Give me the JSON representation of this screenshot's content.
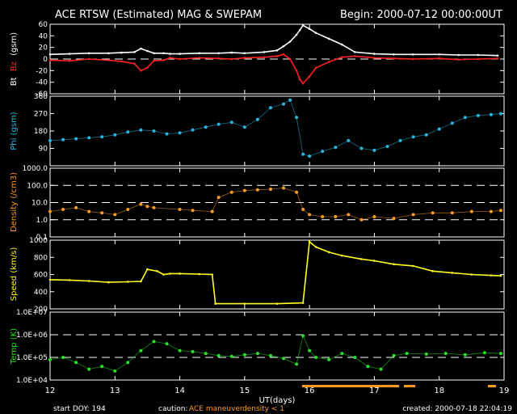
{
  "header": {
    "title": "ACE RTSW (Estimated) MAG & SWEPAM",
    "begin": "Begin: 2000-07-12 00:00:00UT"
  },
  "footer": {
    "start_doy": "start DOY: 194",
    "caution_label": "caution:",
    "caution_maneuver": "ACE maneuver",
    "caution_density": "density < 1",
    "created": "created:  2000-07-18 22:04:19"
  },
  "colors": {
    "background": "#000000",
    "axes": "#ffffff",
    "bt": "#ffffff",
    "bz": "#ff2020",
    "phi": "#22b8e6",
    "density": "#ff9a1e",
    "speed": "#ffff22",
    "temp": "#22e622"
  },
  "chart_data": [
    {
      "type": "line",
      "ylabel_parts": [
        "Bt",
        "Bz",
        "(gsm)"
      ],
      "ylim": [
        -60,
        60
      ],
      "yticks": [
        -60,
        -40,
        -20,
        0,
        20,
        40,
        60
      ],
      "ytick_labels": [
        "-60",
        "-40",
        "-20",
        "0",
        "20",
        "40",
        "60"
      ],
      "xlim": [
        12,
        19
      ],
      "dashed_ref": [
        0
      ],
      "series": [
        {
          "name": "Bt",
          "x": [
            12.0,
            12.3,
            12.6,
            12.9,
            13.1,
            13.3,
            13.4,
            13.5,
            13.6,
            13.75,
            13.85,
            14.0,
            14.3,
            14.6,
            14.8,
            15.0,
            15.3,
            15.5,
            15.6,
            15.7,
            15.8,
            15.85,
            15.9,
            16.0,
            16.1,
            16.3,
            16.5,
            16.7,
            17.0,
            17.3,
            17.6,
            18.0,
            18.3,
            18.6,
            18.9
          ],
          "y": [
            8,
            9,
            10,
            10,
            11,
            12,
            18,
            14,
            10,
            10,
            9,
            9,
            10,
            10,
            11,
            10,
            12,
            15,
            22,
            30,
            42,
            50,
            58,
            52,
            45,
            35,
            25,
            12,
            9,
            8,
            8,
            8,
            7,
            7,
            6
          ]
        },
        {
          "name": "Bz",
          "x": [
            12.0,
            12.3,
            12.6,
            12.9,
            13.1,
            13.3,
            13.4,
            13.5,
            13.6,
            13.75,
            13.85,
            14.0,
            14.3,
            14.6,
            14.8,
            15.0,
            15.3,
            15.5,
            15.6,
            15.7,
            15.8,
            15.85,
            15.9,
            16.0,
            16.1,
            16.3,
            16.5,
            16.7,
            17.0,
            17.3,
            17.6,
            18.0,
            18.3,
            18.6,
            18.9
          ],
          "y": [
            -2,
            -3,
            0,
            -2,
            -4,
            -8,
            -20,
            -15,
            -3,
            -2,
            2,
            0,
            2,
            1,
            0,
            2,
            3,
            5,
            8,
            0,
            -20,
            -35,
            -42,
            -30,
            -15,
            -5,
            3,
            5,
            2,
            1,
            0,
            1,
            -1,
            0,
            1
          ]
        }
      ]
    },
    {
      "type": "scatter",
      "ylabel": "Phi (gsm)",
      "ylim": [
        0,
        360
      ],
      "yticks": [
        90,
        180,
        270,
        360
      ],
      "ytick_labels": [
        "90",
        "180",
        "270",
        "360"
      ],
      "xlim": [
        12,
        19
      ],
      "series": [
        {
          "name": "Phi",
          "x": [
            12.0,
            12.2,
            12.4,
            12.6,
            12.8,
            13.0,
            13.2,
            13.4,
            13.6,
            13.8,
            14.0,
            14.2,
            14.4,
            14.6,
            14.8,
            15.0,
            15.2,
            15.4,
            15.6,
            15.7,
            15.8,
            15.9,
            16.0,
            16.2,
            16.4,
            16.6,
            16.8,
            17.0,
            17.2,
            17.4,
            17.6,
            17.8,
            18.0,
            18.2,
            18.4,
            18.6,
            18.8,
            18.95
          ],
          "y": [
            130,
            135,
            140,
            145,
            150,
            160,
            175,
            185,
            180,
            165,
            170,
            185,
            200,
            215,
            225,
            200,
            240,
            300,
            320,
            340,
            250,
            60,
            50,
            75,
            95,
            130,
            90,
            80,
            100,
            130,
            150,
            160,
            190,
            220,
            250,
            260,
            265,
            270
          ]
        }
      ]
    },
    {
      "type": "scatter",
      "ylabel": "Density (/cm3)",
      "yscale": "log",
      "ylim": [
        0.1,
        1000
      ],
      "yticks": [
        0.1,
        1,
        10,
        100,
        1000
      ],
      "ytick_labels": [
        "0.1",
        "1.0",
        "10.0",
        "100.0",
        "1000.0"
      ],
      "xlim": [
        12,
        19
      ],
      "series": [
        {
          "name": "Density",
          "x": [
            12.0,
            12.2,
            12.4,
            12.6,
            12.8,
            13.0,
            13.2,
            13.4,
            13.5,
            13.6,
            14.0,
            14.2,
            14.5,
            14.6,
            14.8,
            15.0,
            15.2,
            15.4,
            15.6,
            15.8,
            15.9,
            16.0,
            16.2,
            16.4,
            16.6,
            16.8,
            17.0,
            17.3,
            17.6,
            17.9,
            18.2,
            18.5,
            18.8,
            18.95
          ],
          "y": [
            3.0,
            4.0,
            5.0,
            3.0,
            2.5,
            2.0,
            4.0,
            8.0,
            6.0,
            5.0,
            4.0,
            3.5,
            3.0,
            20.0,
            40.0,
            50.0,
            55.0,
            60.0,
            70.0,
            40.0,
            4.0,
            2.0,
            1.5,
            1.5,
            2.0,
            1.0,
            1.5,
            1.2,
            2.0,
            2.5,
            2.5,
            3.0,
            3.0,
            3.5
          ]
        }
      ]
    },
    {
      "type": "line",
      "ylabel": "Speed (km/s)",
      "ylim": [
        200,
        1000
      ],
      "yticks": [
        200,
        400,
        600,
        800,
        1000
      ],
      "ytick_labels": [
        "200",
        "400",
        "600",
        "800",
        "1000"
      ],
      "xlim": [
        12,
        19
      ],
      "series": [
        {
          "name": "Speed",
          "x": [
            12.0,
            12.3,
            12.6,
            12.9,
            13.2,
            13.4,
            13.5,
            13.65,
            13.75,
            13.85,
            14.0,
            14.3,
            14.5,
            14.55,
            15.0,
            15.5,
            15.9,
            16.0,
            16.1,
            16.3,
            16.5,
            16.8,
            17.0,
            17.3,
            17.6,
            17.9,
            18.2,
            18.5,
            18.8,
            18.95
          ],
          "y": [
            540,
            535,
            525,
            510,
            515,
            520,
            660,
            640,
            600,
            610,
            610,
            605,
            600,
            260,
            260,
            260,
            270,
            980,
            920,
            860,
            820,
            780,
            760,
            720,
            700,
            640,
            620,
            600,
            590,
            585
          ]
        }
      ]
    },
    {
      "type": "scatter",
      "ylabel": "Temp (K)",
      "yscale": "log",
      "ylim": [
        10000,
        10000000
      ],
      "yticks": [
        10000,
        100000,
        1000000,
        10000000
      ],
      "ytick_labels": [
        "1.0E+04",
        "1.0E+05",
        "1.0E+06",
        "1.0E+07"
      ],
      "xlim": [
        12,
        19
      ],
      "dashed_ref": [
        100000,
        1000000
      ],
      "series": [
        {
          "name": "Temp",
          "x": [
            12.0,
            12.2,
            12.4,
            12.6,
            12.8,
            13.0,
            13.2,
            13.4,
            13.6,
            13.8,
            14.0,
            14.2,
            14.4,
            14.6,
            14.8,
            15.0,
            15.2,
            15.4,
            15.6,
            15.8,
            15.9,
            16.0,
            16.1,
            16.3,
            16.5,
            16.7,
            16.9,
            17.1,
            17.3,
            17.5,
            17.8,
            18.1,
            18.4,
            18.7,
            18.95
          ],
          "y": [
            80000,
            100000,
            60000,
            30000,
            40000,
            25000,
            60000,
            200000,
            500000,
            400000,
            200000,
            180000,
            150000,
            120000,
            110000,
            130000,
            150000,
            120000,
            90000,
            50000,
            900000,
            200000,
            100000,
            80000,
            150000,
            100000,
            40000,
            30000,
            120000,
            150000,
            140000,
            150000,
            130000,
            160000,
            150000
          ]
        }
      ]
    }
  ],
  "xaxis": {
    "label": "UT(days)",
    "ticks": [
      12,
      13,
      14,
      15,
      16,
      17,
      18,
      19
    ],
    "tick_labels": [
      "12",
      "13",
      "14",
      "15",
      "16",
      "17",
      "18",
      "19"
    ],
    "xlim": [
      12,
      19
    ]
  }
}
